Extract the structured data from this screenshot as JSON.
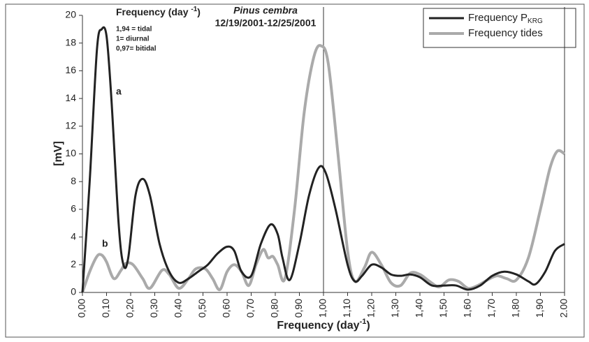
{
  "chart_data": {
    "type": "line",
    "title": "Pinus cembra",
    "subtitle": "12/19/2001-12/25/2001",
    "ylabel": "[mV]",
    "xlabel": [
      "Frequency (day",
      "-1",
      ")"
    ],
    "annotation_title": [
      "Frequency (day ",
      "-1",
      ")"
    ],
    "notes": [
      "1,94 = tidal",
      "1= diurnal",
      "0,97= bitidal"
    ],
    "curve_labels": [
      "a",
      "b"
    ],
    "xlim": [
      0,
      2
    ],
    "ylim": [
      0,
      20
    ],
    "yticks": [
      0,
      2,
      4,
      6,
      8,
      10,
      12,
      14,
      16,
      18,
      20
    ],
    "xticks": [
      {
        "value": 0,
        "label": "0,00"
      },
      {
        "value": 0.1,
        "label": "0,10"
      },
      {
        "value": 0.2,
        "label": "0,20"
      },
      {
        "value": 0.3,
        "label": "0,30"
      },
      {
        "value": 0.4,
        "label": "0,40"
      },
      {
        "value": 0.5,
        "label": "0,50"
      },
      {
        "value": 0.6,
        "label": "0,60"
      },
      {
        "value": 0.7,
        "label": "0,70"
      },
      {
        "value": 0.8,
        "label": "0,80"
      },
      {
        "value": 0.9,
        "label": "0,90"
      },
      {
        "value": 1,
        "label": "1,00"
      },
      {
        "value": 1.1,
        "label": "1,10"
      },
      {
        "value": 1.2,
        "label": "1,20"
      },
      {
        "value": 1.3,
        "label": "1,30"
      },
      {
        "value": 1.4,
        "label": "1,40"
      },
      {
        "value": 1.5,
        "label": "1,50"
      },
      {
        "value": 1.6,
        "label": "1,60"
      },
      {
        "value": 1.7,
        "label": "1,70"
      },
      {
        "value": 1.8,
        "label": "1,80"
      },
      {
        "value": 1.9,
        "label": "1,90"
      },
      {
        "value": 2,
        "label": "2.00"
      }
    ],
    "vlines": [
      1,
      2
    ],
    "legend": "upper right",
    "series": [
      {
        "name": [
          "Frequency P",
          "KRG"
        ],
        "color": "#222222",
        "x": [
          0,
          0.03,
          0.06,
          0.08,
          0.1,
          0.12,
          0.15,
          0.17,
          0.19,
          0.22,
          0.25,
          0.28,
          0.32,
          0.36,
          0.4,
          0.44,
          0.48,
          0.52,
          0.56,
          0.6,
          0.63,
          0.66,
          0.7,
          0.74,
          0.78,
          0.81,
          0.83,
          0.86,
          0.9,
          0.94,
          0.98,
          1.01,
          1.05,
          1.1,
          1.13,
          1.16,
          1.2,
          1.24,
          1.28,
          1.32,
          1.36,
          1.4,
          1.45,
          1.5,
          1.55,
          1.6,
          1.65,
          1.7,
          1.75,
          1.8,
          1.85,
          1.88,
          1.92,
          1.96,
          2
        ],
        "values": [
          0,
          8,
          17.5,
          19,
          18.5,
          14,
          5,
          2,
          2.5,
          7,
          8.2,
          7,
          3.5,
          1.5,
          0.7,
          1,
          1.5,
          2,
          2.8,
          3.3,
          3,
          1.5,
          1.2,
          3.5,
          4.9,
          4.2,
          2.5,
          0.9,
          3.5,
          7,
          9,
          8.6,
          6,
          2,
          0.8,
          1.2,
          2,
          1.8,
          1.3,
          1.2,
          1.3,
          1.1,
          0.5,
          0.5,
          0.5,
          0.2,
          0.5,
          1.2,
          1.5,
          1.3,
          0.8,
          0.6,
          1.5,
          3,
          3.5
        ]
      },
      {
        "name": [
          "Frequency tides"
        ],
        "color": "#aaaaaa",
        "x": [
          0,
          0.03,
          0.06,
          0.08,
          0.1,
          0.13,
          0.16,
          0.18,
          0.21,
          0.25,
          0.28,
          0.33,
          0.36,
          0.4,
          0.44,
          0.47,
          0.51,
          0.54,
          0.57,
          0.6,
          0.63,
          0.66,
          0.69,
          0.72,
          0.75,
          0.77,
          0.79,
          0.81,
          0.84,
          0.88,
          0.92,
          0.96,
          0.99,
          1.02,
          1.06,
          1.1,
          1.13,
          1.17,
          1.2,
          1.24,
          1.28,
          1.32,
          1.36,
          1.4,
          1.44,
          1.48,
          1.52,
          1.56,
          1.6,
          1.64,
          1.68,
          1.72,
          1.76,
          1.8,
          1.85,
          1.9,
          1.94,
          1.97,
          2
        ],
        "values": [
          0,
          1.5,
          2.6,
          2.7,
          2.2,
          1,
          1.6,
          2.1,
          2,
          1,
          0.3,
          1.6,
          1.3,
          0.3,
          1,
          1.7,
          1.7,
          1,
          0.2,
          1.5,
          2,
          1.5,
          0.5,
          2,
          3.1,
          2.5,
          2.6,
          2,
          1,
          6,
          13,
          17,
          17.8,
          16.5,
          10,
          3,
          0.8,
          1.8,
          2.9,
          2,
          0.7,
          0.5,
          1.4,
          1.3,
          0.8,
          0.4,
          0.9,
          0.8,
          0.3,
          0.5,
          0.9,
          1.2,
          1,
          0.9,
          2.5,
          6,
          9,
          10.2,
          10
        ]
      }
    ]
  }
}
